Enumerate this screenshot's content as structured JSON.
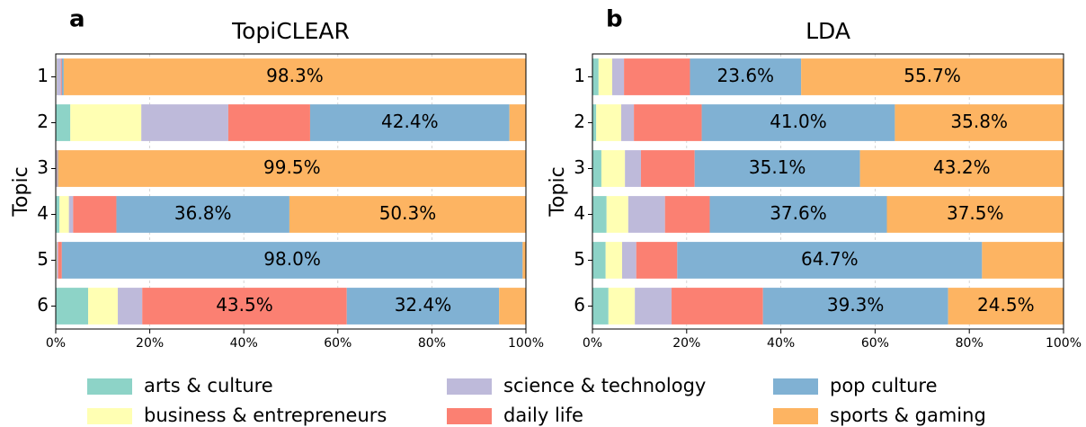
{
  "chart_data": [
    {
      "type": "bar",
      "panel_label": "a",
      "title": "TopiCLEAR",
      "ylabel": "Topic",
      "categories": [
        "1",
        "2",
        "3",
        "4",
        "5",
        "6"
      ],
      "xlim": [
        0,
        100
      ],
      "xticks": [
        {
          "value": 0,
          "label": "0%"
        },
        {
          "value": 20,
          "label": "20%"
        },
        {
          "value": 40,
          "label": "40%"
        },
        {
          "value": 60,
          "label": "60%"
        },
        {
          "value": 80,
          "label": "80%"
        },
        {
          "value": 100,
          "label": "100%"
        }
      ],
      "grid": true,
      "series": [
        {
          "name": "arts & culture",
          "color": "#8dd3c7",
          "values": [
            0.1,
            3.1,
            0.0,
            0.8,
            0.1,
            6.9
          ],
          "value_labels": [
            null,
            null,
            null,
            null,
            null,
            null
          ]
        },
        {
          "name": "business & entrepreneurs",
          "color": "#ffffb3",
          "values": [
            0.1,
            15.1,
            0.0,
            2.0,
            0.1,
            6.3
          ],
          "value_labels": [
            null,
            null,
            null,
            null,
            null,
            null
          ]
        },
        {
          "name": "science & technology",
          "color": "#bebada",
          "values": [
            0.9,
            18.5,
            0.2,
            0.9,
            0.3,
            5.2
          ],
          "value_labels": [
            null,
            null,
            null,
            null,
            null,
            null
          ]
        },
        {
          "name": "daily life",
          "color": "#fb8072",
          "values": [
            0.2,
            17.4,
            0.1,
            9.2,
            0.8,
            43.5
          ],
          "value_labels": [
            null,
            null,
            null,
            null,
            null,
            "43.5%"
          ]
        },
        {
          "name": "pop culture",
          "color": "#80b1d3",
          "values": [
            0.4,
            42.4,
            0.2,
            36.8,
            98.0,
            32.4
          ],
          "value_labels": [
            null,
            "42.4%",
            null,
            "36.8%",
            "98.0%",
            "32.4%"
          ]
        },
        {
          "name": "sports & gaming",
          "color": "#fdb462",
          "values": [
            98.3,
            3.5,
            99.5,
            50.3,
            0.7,
            5.7
          ],
          "value_labels": [
            "98.3%",
            null,
            "99.5%",
            "50.3%",
            null,
            null
          ]
        }
      ]
    },
    {
      "type": "bar",
      "panel_label": "b",
      "title": "LDA",
      "ylabel": "Topic",
      "categories": [
        "1",
        "2",
        "3",
        "4",
        "5",
        "6"
      ],
      "xlim": [
        0,
        100
      ],
      "xticks": [
        {
          "value": 0,
          "label": "0%"
        },
        {
          "value": 20,
          "label": "20%"
        },
        {
          "value": 40,
          "label": "40%"
        },
        {
          "value": 60,
          "label": "60%"
        },
        {
          "value": 80,
          "label": "80%"
        },
        {
          "value": 100,
          "label": "100%"
        }
      ],
      "grid": true,
      "series": [
        {
          "color": "#8dd3c7",
          "values": [
            1.3,
            0.8,
            1.9,
            3.0,
            2.8,
            3.4
          ],
          "value_labels": [
            null,
            null,
            null,
            null,
            null,
            null
          ]
        },
        {
          "color": "#ffffb3",
          "values": [
            2.9,
            5.3,
            5.0,
            4.6,
            3.5,
            5.6
          ],
          "value_labels": [
            null,
            null,
            null,
            null,
            null,
            null
          ]
        },
        {
          "color": "#bebada",
          "values": [
            2.5,
            2.7,
            3.4,
            7.8,
            3.0,
            7.8
          ],
          "value_labels": [
            null,
            null,
            null,
            null,
            null,
            null
          ]
        },
        {
          "color": "#fb8072",
          "values": [
            14.0,
            14.4,
            11.4,
            9.5,
            8.7,
            19.4
          ],
          "value_labels": [
            null,
            null,
            null,
            null,
            null,
            null
          ]
        },
        {
          "color": "#80b1d3",
          "values": [
            23.6,
            41.0,
            35.1,
            37.6,
            64.7,
            39.3
          ],
          "value_labels": [
            "23.6%",
            "41.0%",
            "35.1%",
            "37.6%",
            "64.7%",
            "39.3%"
          ]
        },
        {
          "color": "#fdb462",
          "values": [
            55.7,
            35.8,
            43.2,
            37.5,
            17.3,
            24.5
          ],
          "value_labels": [
            "55.7%",
            "35.8%",
            "43.2%",
            "37.5%",
            null,
            "24.5%"
          ]
        }
      ]
    }
  ]
}
